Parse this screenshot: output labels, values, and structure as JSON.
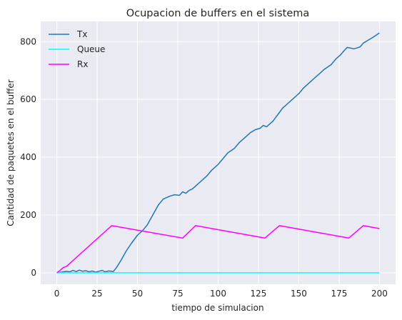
{
  "chart_data": {
    "type": "line",
    "title": "Ocupacion de buffers en el sistema",
    "xlabel": "tiempo de simulacion",
    "ylabel": "Cantidad de paquetes en el buffer",
    "xlim": [
      -10,
      210
    ],
    "ylim": [
      -40,
      870
    ],
    "xticks": [
      0,
      25,
      50,
      75,
      100,
      125,
      150,
      175,
      200
    ],
    "yticks": [
      0,
      200,
      400,
      600,
      800
    ],
    "grid": true,
    "legend_position": "top-left",
    "series": [
      {
        "name": "Tx",
        "color": "#1f77b4",
        "x": [
          0,
          3,
          6,
          8,
          10,
          12,
          14,
          16,
          18,
          20,
          22,
          24,
          26,
          28,
          30,
          32,
          34,
          35,
          37,
          40,
          43,
          46,
          50,
          53,
          56,
          60,
          63,
          66,
          70,
          73,
          76,
          78,
          80,
          82,
          84,
          86,
          88,
          90,
          93,
          96,
          100,
          103,
          106,
          110,
          113,
          116,
          120,
          123,
          126,
          128,
          130,
          132,
          134,
          136,
          138,
          140,
          143,
          146,
          150,
          153,
          156,
          160,
          163,
          166,
          170,
          173,
          176,
          178,
          180,
          182,
          184,
          186,
          188,
          190,
          193,
          196,
          200
        ],
        "y": [
          0,
          2,
          5,
          3,
          8,
          4,
          9,
          5,
          7,
          3,
          6,
          2,
          5,
          8,
          3,
          6,
          5,
          4,
          18,
          45,
          75,
          100,
          130,
          145,
          165,
          205,
          235,
          255,
          265,
          270,
          268,
          280,
          275,
          285,
          290,
          300,
          310,
          320,
          335,
          355,
          375,
          395,
          415,
          430,
          450,
          465,
          485,
          495,
          500,
          510,
          505,
          515,
          525,
          540,
          555,
          570,
          585,
          600,
          620,
          640,
          655,
          675,
          690,
          705,
          720,
          740,
          755,
          768,
          780,
          778,
          775,
          778,
          782,
          795,
          805,
          815,
          830
        ]
      },
      {
        "name": "Queue",
        "color": "#00ffff",
        "x": [
          0,
          200
        ],
        "y": [
          0,
          0
        ]
      },
      {
        "name": "Rx",
        "color": "#ff00ff",
        "x": [
          0,
          2,
          4,
          6,
          34,
          78,
          86,
          129,
          138,
          181,
          190,
          200
        ],
        "y": [
          0,
          8,
          18,
          22,
          163,
          120,
          163,
          120,
          163,
          120,
          163,
          153
        ]
      }
    ]
  }
}
